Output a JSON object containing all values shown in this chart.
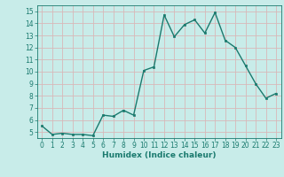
{
  "x": [
    0,
    1,
    2,
    3,
    4,
    5,
    6,
    7,
    8,
    9,
    10,
    11,
    12,
    13,
    14,
    15,
    16,
    17,
    18,
    19,
    20,
    21,
    22,
    23
  ],
  "y": [
    5.5,
    4.8,
    4.9,
    4.8,
    4.8,
    4.7,
    6.4,
    6.3,
    6.8,
    6.4,
    10.1,
    10.4,
    14.7,
    12.9,
    13.9,
    14.3,
    13.2,
    14.9,
    12.6,
    12.0,
    10.5,
    9.0,
    7.8,
    8.2
  ],
  "xlim": [
    -0.5,
    23.5
  ],
  "ylim": [
    4.5,
    15.5
  ],
  "yticks": [
    5,
    6,
    7,
    8,
    9,
    10,
    11,
    12,
    13,
    14,
    15
  ],
  "xticks": [
    0,
    1,
    2,
    3,
    4,
    5,
    6,
    7,
    8,
    9,
    10,
    11,
    12,
    13,
    14,
    15,
    16,
    17,
    18,
    19,
    20,
    21,
    22,
    23
  ],
  "xlabel": "Humidex (Indice chaleur)",
  "line_color": "#1a7a6e",
  "marker": "s",
  "marker_size": 2.0,
  "bg_color": "#c8ece9",
  "grid_color": "#d8b8b8",
  "tick_color": "#1a7a6e",
  "label_fontsize": 6.5,
  "tick_fontsize": 5.5
}
